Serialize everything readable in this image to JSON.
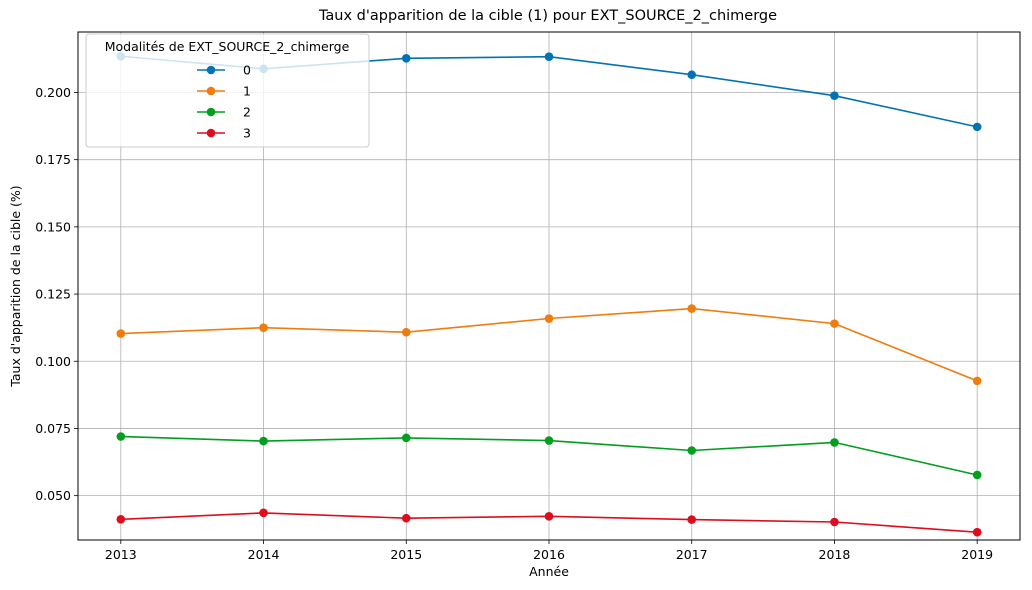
{
  "chart_data": {
    "type": "line",
    "title": "Taux d'apparition de la cible (1) pour EXT_SOURCE_2_chimerge",
    "xlabel": "Année",
    "ylabel": "Taux d'apparition de la cible (%)",
    "x": [
      2013,
      2014,
      2015,
      2016,
      2017,
      2018,
      2019
    ],
    "x_tick_labels": [
      "2013",
      "2014",
      "2015",
      "2016",
      "2017",
      "2018",
      "2019"
    ],
    "xlim": [
      2012.7,
      2019.3
    ],
    "ylim": [
      0.0335,
      0.2225
    ],
    "y_ticks": [
      0.05,
      0.075,
      0.1,
      0.125,
      0.15,
      0.175,
      0.2
    ],
    "y_tick_labels": [
      "0.050",
      "0.075",
      "0.100",
      "0.125",
      "0.150",
      "0.175",
      "0.200"
    ],
    "grid": true,
    "legend": {
      "title": "Modalités de EXT_SOURCE_2_chimerge",
      "placement": "top-left"
    },
    "series": [
      {
        "name": "0",
        "color": "#0173b2",
        "values": [
          0.2135,
          0.2088,
          0.2127,
          0.2133,
          0.2066,
          0.1988,
          0.1872
        ]
      },
      {
        "name": "1",
        "color": "#ef7c0e",
        "values": [
          0.1103,
          0.1125,
          0.1108,
          0.1159,
          0.1196,
          0.114,
          0.0927
        ]
      },
      {
        "name": "2",
        "color": "#029e1e",
        "values": [
          0.072,
          0.0703,
          0.0715,
          0.0705,
          0.0668,
          0.0698,
          0.0577
        ]
      },
      {
        "name": "3",
        "color": "#de0d1d",
        "values": [
          0.0412,
          0.0436,
          0.0416,
          0.0423,
          0.0411,
          0.0402,
          0.0364
        ]
      }
    ]
  }
}
